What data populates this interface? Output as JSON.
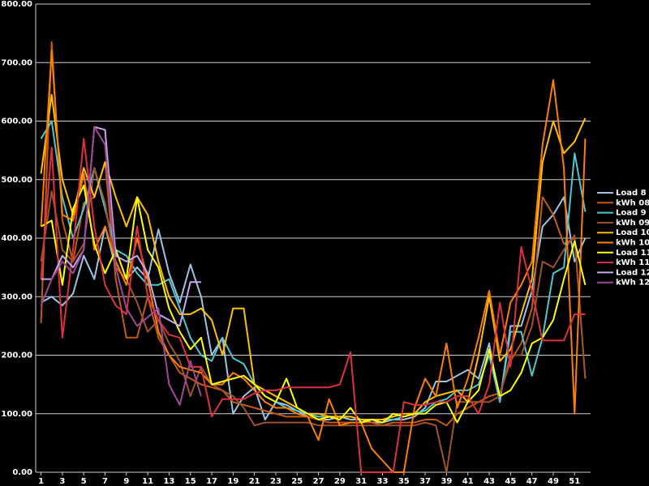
{
  "chart_data": {
    "type": "line",
    "x": [
      1,
      2,
      3,
      4,
      5,
      6,
      7,
      8,
      9,
      10,
      11,
      12,
      13,
      14,
      15,
      16,
      17,
      18,
      19,
      20,
      21,
      22,
      23,
      24,
      25,
      26,
      27,
      28,
      29,
      30,
      31,
      32,
      33,
      34,
      35,
      36,
      37,
      38,
      39,
      40,
      41,
      42,
      43,
      44,
      45,
      46,
      47,
      48,
      49,
      50,
      51,
      52
    ],
    "xlim": [
      0.5,
      52.5
    ],
    "xticks": [
      1,
      3,
      5,
      7,
      9,
      11,
      13,
      15,
      17,
      19,
      21,
      23,
      25,
      27,
      29,
      31,
      33,
      35,
      37,
      39,
      41,
      43,
      45,
      47,
      49,
      51
    ],
    "ylim": [
      0,
      800
    ],
    "yticks": [
      {
        "value": 0,
        "label": "0.00"
      },
      {
        "value": 100,
        "label": "100.00"
      },
      {
        "value": 200,
        "label": "200.00"
      },
      {
        "value": 300,
        "label": "300.00"
      },
      {
        "value": 400,
        "label": "400.00"
      },
      {
        "value": 500,
        "label": "500.00"
      },
      {
        "value": 600,
        "label": "600.00"
      },
      {
        "value": 700,
        "label": "700.00"
      },
      {
        "value": 800,
        "label": "800.00"
      }
    ],
    "grid": true,
    "legend": "right",
    "series": [
      {
        "name": "Load 8",
        "color": "#9dc3e6",
        "values": [
          290,
          300,
          285,
          305,
          370,
          330,
          420,
          350,
          330,
          350,
          330,
          415,
          340,
          290,
          355,
          300,
          200,
          230,
          100,
          130,
          145,
          90,
          120,
          115,
          105,
          95,
          90,
          90,
          95,
          90,
          90,
          85,
          85,
          90,
          90,
          95,
          110,
          155,
          155,
          165,
          175,
          160,
          220,
          120,
          250,
          250,
          310,
          420,
          440,
          470,
          360,
          400
        ]
      },
      {
        "name": "kWh 08",
        "color": "#c55a11",
        "values": [
          255,
          735,
          430,
          360,
          460,
          470,
          530,
          330,
          230,
          230,
          300,
          230,
          200,
          170,
          160,
          150,
          145,
          140,
          120,
          115,
          110,
          105,
          100,
          95,
          95,
          95,
          90,
          85,
          85,
          85,
          85,
          85,
          80,
          85,
          85,
          85,
          90,
          90,
          80,
          100,
          110,
          120,
          130,
          135,
          190,
          220,
          280,
          470,
          440,
          390,
          400,
          160
        ]
      },
      {
        "name": "Load 9",
        "color": "#4bc8d0",
        "values": [
          570,
          600,
          470,
          400,
          450,
          520,
          450,
          380,
          370,
          340,
          320,
          320,
          330,
          280,
          230,
          200,
          190,
          230,
          195,
          185,
          150,
          130,
          120,
          110,
          105,
          100,
          95,
          95,
          95,
          95,
          90,
          90,
          90,
          90,
          95,
          100,
          105,
          120,
          125,
          140,
          140,
          150,
          200,
          120,
          240,
          240,
          165,
          230,
          340,
          350,
          545,
          445
        ]
      },
      {
        "name": "kWh 09",
        "color": "#a0522d",
        "values": [
          360,
          480,
          380,
          360,
          390,
          520,
          460,
          350,
          330,
          290,
          240,
          260,
          220,
          190,
          130,
          180,
          150,
          140,
          130,
          110,
          80,
          85,
          85,
          85,
          85,
          85,
          80,
          80,
          80,
          80,
          80,
          80,
          80,
          80,
          80,
          80,
          85,
          80,
          0,
          120,
          120,
          120,
          120,
          130,
          200,
          200,
          250,
          360,
          350,
          380,
          405,
          160
        ]
      },
      {
        "name": "Load 10",
        "color": "#ffc000",
        "values": [
          510,
          645,
          500,
          440,
          520,
          470,
          530,
          470,
          420,
          470,
          440,
          360,
          300,
          270,
          270,
          280,
          260,
          200,
          280,
          280,
          150,
          140,
          130,
          120,
          110,
          100,
          100,
          95,
          95,
          95,
          90,
          90,
          90,
          95,
          100,
          100,
          120,
          130,
          135,
          140,
          120,
          200,
          300,
          190,
          210,
          270,
          330,
          530,
          600,
          545,
          565,
          605
        ]
      },
      {
        "name": "kWh 10",
        "color": "#ff7f00",
        "values": [
          420,
          720,
          440,
          430,
          510,
          380,
          420,
          360,
          320,
          400,
          330,
          240,
          200,
          180,
          175,
          170,
          150,
          150,
          170,
          160,
          140,
          120,
          110,
          110,
          100,
          95,
          55,
          125,
          80,
          85,
          85,
          40,
          20,
          0,
          0,
          110,
          160,
          130,
          220,
          110,
          160,
          230,
          310,
          200,
          290,
          320,
          360,
          560,
          670,
          520,
          100,
          570
        ]
      },
      {
        "name": "Load 11",
        "color": "#ffff00",
        "values": [
          420,
          430,
          320,
          450,
          490,
          390,
          340,
          380,
          330,
          470,
          380,
          350,
          280,
          240,
          210,
          230,
          150,
          155,
          160,
          165,
          150,
          130,
          120,
          160,
          110,
          100,
          90,
          95,
          90,
          110,
          85,
          90,
          85,
          100,
          95,
          100,
          100,
          115,
          120,
          85,
          120,
          140,
          210,
          130,
          140,
          170,
          220,
          230,
          260,
          330,
          395,
          320
        ]
      },
      {
        "name": "kWh 11",
        "color": "#e03040",
        "values": [
          330,
          555,
          230,
          380,
          570,
          420,
          320,
          285,
          270,
          420,
          300,
          260,
          235,
          230,
          180,
          180,
          95,
          125,
          125,
          125,
          135,
          140,
          140,
          145,
          145,
          145,
          145,
          145,
          150,
          205,
          0,
          0,
          0,
          0,
          120,
          115,
          115,
          120,
          120,
          130,
          130,
          100,
          150,
          290,
          180,
          385,
          310,
          225,
          225,
          225,
          270,
          270
        ]
      },
      {
        "name": "Load 12",
        "color": "#c8a8f0",
        "values": [
          330,
          330,
          370,
          350,
          380,
          590,
          585,
          370,
          360,
          370,
          340,
          270,
          260,
          250,
          325,
          325,
          null,
          null,
          null,
          null,
          null,
          null,
          null,
          null,
          null,
          null,
          null,
          null,
          null,
          null,
          null,
          null,
          null,
          null,
          null,
          null,
          null,
          null,
          null,
          null,
          null,
          null,
          null,
          null,
          null,
          null,
          null,
          null,
          null,
          null,
          null,
          null
        ]
      },
      {
        "name": "kWh 12",
        "color": "#a04898",
        "values": [
          285,
          330,
          360,
          340,
          380,
          590,
          560,
          350,
          280,
          250,
          265,
          280,
          150,
          115,
          190,
          130,
          null,
          null,
          null,
          null,
          null,
          null,
          null,
          null,
          null,
          null,
          null,
          null,
          null,
          null,
          null,
          null,
          null,
          null,
          null,
          null,
          null,
          null,
          null,
          null,
          null,
          null,
          null,
          null,
          null,
          null,
          null,
          null,
          null,
          null,
          null,
          null
        ]
      }
    ]
  }
}
